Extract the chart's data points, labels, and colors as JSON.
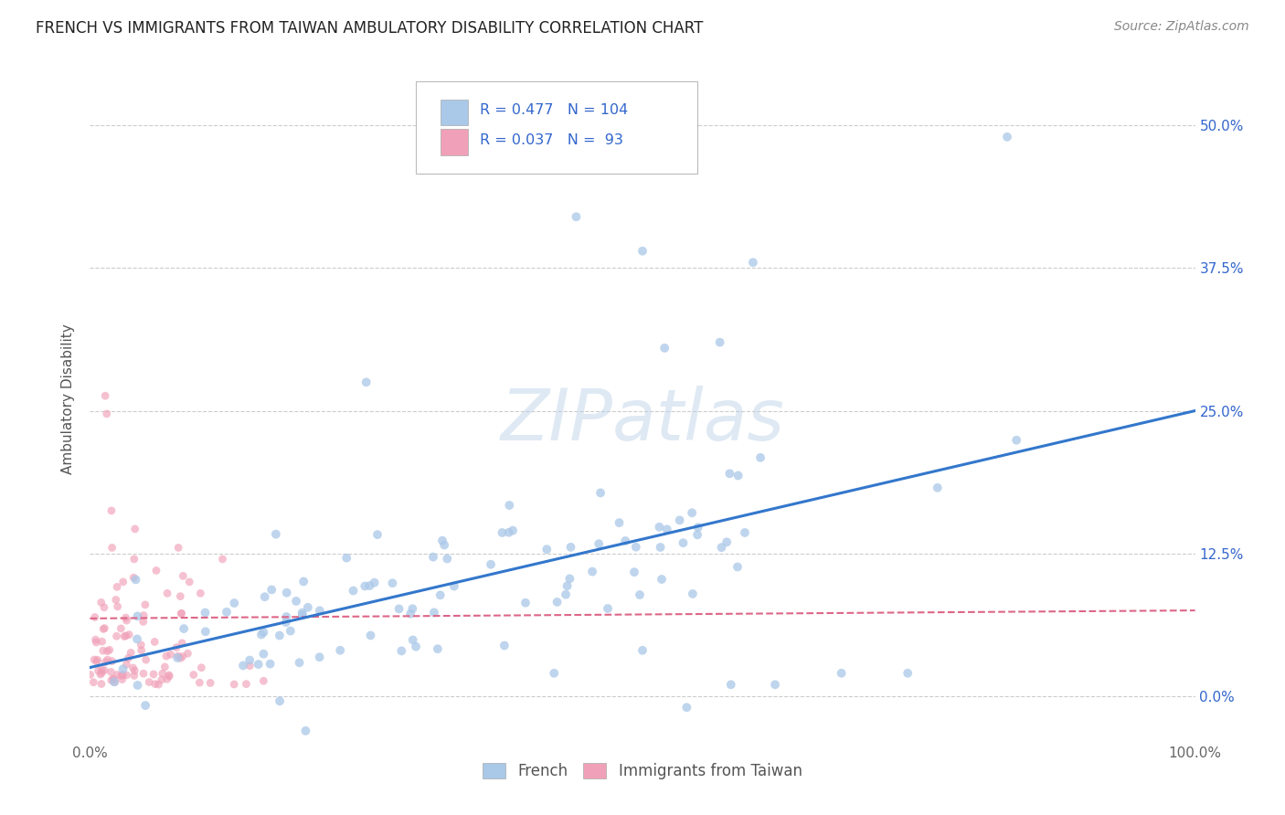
{
  "title": "FRENCH VS IMMIGRANTS FROM TAIWAN AMBULATORY DISABILITY CORRELATION CHART",
  "source": "Source: ZipAtlas.com",
  "ylabel": "Ambulatory Disability",
  "watermark": "ZIPatlas",
  "xlim": [
    0,
    1.0
  ],
  "ylim": [
    -0.04,
    0.56
  ],
  "yticks": [
    0.0,
    0.125,
    0.25,
    0.375,
    0.5
  ],
  "ytick_labels_right": [
    "0.0%",
    "12.5%",
    "25.0%",
    "37.5%",
    "50.0%"
  ],
  "xticks": [
    0.0,
    0.25,
    0.5,
    0.75,
    1.0
  ],
  "xtick_labels": [
    "0.0%",
    "",
    "",
    "",
    "100.0%"
  ],
  "french_R": 0.477,
  "french_N": 104,
  "taiwan_R": 0.037,
  "taiwan_N": 93,
  "french_color": "#aac8e8",
  "taiwan_color": "#f0a0b8",
  "french_line_color": "#3377cc",
  "taiwan_line_color": "#dd6688",
  "legend_text_color": "#3366cc",
  "legend_label_color": "#333333",
  "background_color": "#ffffff",
  "french_trendline_x0": 0.0,
  "french_trendline_y0": 0.025,
  "french_trendline_x1": 1.0,
  "french_trendline_y1": 0.25,
  "taiwan_trendline_x0": 0.0,
  "taiwan_trendline_y0": 0.068,
  "taiwan_trendline_x1": 1.0,
  "taiwan_trendline_y1": 0.075
}
